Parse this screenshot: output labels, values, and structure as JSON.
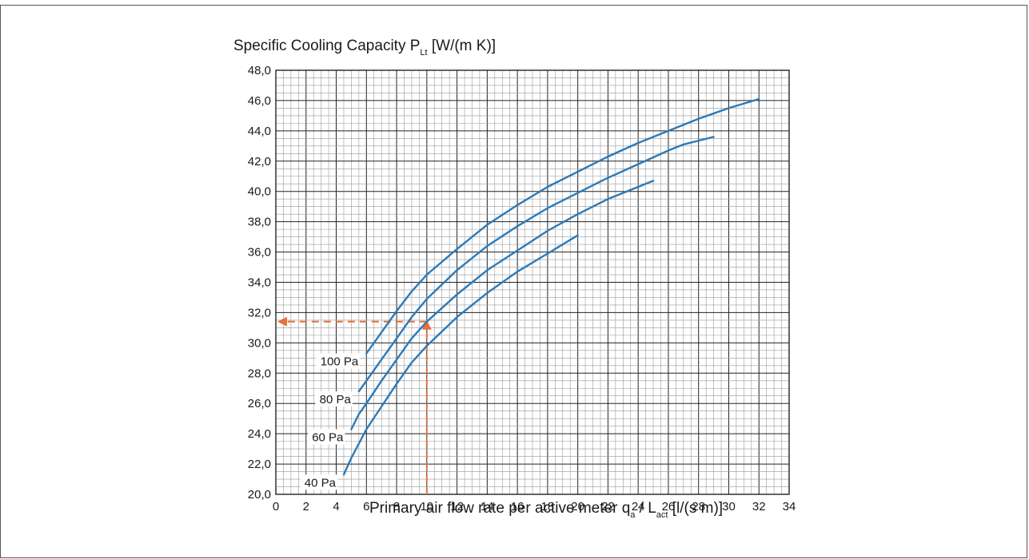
{
  "chart_data": {
    "type": "line",
    "title_prefix": "Specific Cooling Capacity P",
    "title_sub": "Lt",
    "title_suffix": " [W/(m K)]",
    "xlabel_prefix": "Primary air flow rate per active meter q",
    "xlabel_sub1": "a",
    "xlabel_mid": " / L",
    "xlabel_sub2": "act",
    "xlabel_suffix": " [l/(s m)]",
    "xlim": [
      0,
      34
    ],
    "ylim": [
      20,
      48
    ],
    "xticks": [
      "0",
      "2",
      "4",
      "6",
      "8",
      "10",
      "12",
      "14",
      "16",
      "18",
      "20",
      "22",
      "24",
      "26",
      "28",
      "30",
      "32",
      "34"
    ],
    "yticks": [
      "20,0",
      "22,0",
      "24,0",
      "26,0",
      "28,0",
      "30,0",
      "32,0",
      "34,0",
      "36,0",
      "38,0",
      "40,0",
      "42,0",
      "44,0",
      "46,0",
      "48,0"
    ],
    "grid": true,
    "series": [
      {
        "name": "100 Pa",
        "color": "#2a7ab9",
        "x": [
          6.0,
          7.0,
          8.0,
          9.0,
          10.0,
          12.0,
          14.0,
          16.0,
          18.0,
          20.0,
          22.0,
          24.0,
          26.0,
          28.0,
          30.0,
          32.0
        ],
        "y": [
          29.3,
          30.7,
          32.1,
          33.4,
          34.5,
          36.2,
          37.8,
          39.1,
          40.3,
          41.3,
          42.3,
          43.2,
          44.0,
          44.8,
          45.5,
          46.1
        ]
      },
      {
        "name": "80 Pa",
        "color": "#2a7ab9",
        "x": [
          5.5,
          6.0,
          7.0,
          8.0,
          9.0,
          10.0,
          12.0,
          14.0,
          16.0,
          18.0,
          20.0,
          22.0,
          24.0,
          26.0,
          27.0,
          29.0
        ],
        "y": [
          26.8,
          27.5,
          28.9,
          30.3,
          31.7,
          32.9,
          34.8,
          36.4,
          37.7,
          38.9,
          39.9,
          40.9,
          41.8,
          42.7,
          43.1,
          43.6
        ]
      },
      {
        "name": "60 Pa",
        "color": "#2a7ab9",
        "x": [
          5.0,
          5.5,
          6.0,
          7.0,
          8.0,
          9.0,
          10.0,
          12.0,
          14.0,
          16.0,
          18.0,
          20.0,
          22.0,
          24.0,
          25.0
        ],
        "y": [
          24.3,
          25.3,
          26.0,
          27.5,
          28.9,
          30.3,
          31.4,
          33.2,
          34.8,
          36.1,
          37.4,
          38.5,
          39.5,
          40.3,
          40.7
        ]
      },
      {
        "name": "40 Pa",
        "color": "#2a7ab9",
        "x": [
          4.5,
          5.0,
          6.0,
          7.0,
          8.0,
          9.0,
          10.0,
          12.0,
          14.0,
          16.0,
          18.0,
          20.0
        ],
        "y": [
          21.3,
          22.4,
          24.3,
          25.8,
          27.3,
          28.7,
          29.8,
          31.7,
          33.3,
          34.7,
          35.9,
          37.1
        ]
      }
    ],
    "labels": [
      "100 Pa",
      "80 Pa",
      "60 Pa",
      "40 Pa"
    ],
    "annotation": {
      "color": "#e8703a",
      "x": 10,
      "y": 31.4
    }
  }
}
